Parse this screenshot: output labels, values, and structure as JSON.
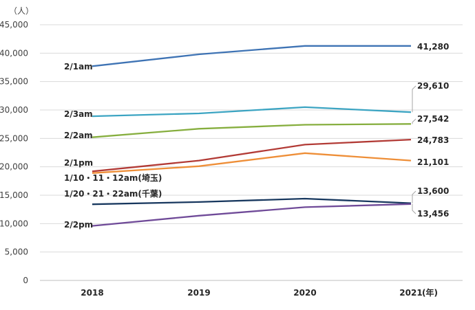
{
  "chart_data": {
    "type": "line",
    "title": "",
    "y_unit": "（人）",
    "x_unit": "(年)",
    "ylim": [
      0,
      45000
    ],
    "yticks": [
      0,
      5000,
      10000,
      15000,
      20000,
      25000,
      30000,
      35000,
      40000,
      45000
    ],
    "ytick_labels": [
      "0",
      "5,000",
      "10,000",
      "15,000",
      "20,000",
      "25,000",
      "30,000",
      "35,000",
      "40,000",
      "45,000"
    ],
    "categories": [
      "2018",
      "2019",
      "2020",
      "2021"
    ],
    "grid": true,
    "series": [
      {
        "name": "2/1am",
        "color": "#3E73B4",
        "values": [
          37700,
          39800,
          41280,
          41280
        ],
        "end_label": "41,280"
      },
      {
        "name": "2/3am",
        "color": "#3BA4C2",
        "values": [
          28900,
          29400,
          30500,
          29610
        ],
        "end_label": "29,610"
      },
      {
        "name": "2/2am",
        "color": "#86AE3E",
        "values": [
          25200,
          26700,
          27400,
          27542
        ],
        "end_label": "27,542"
      },
      {
        "name": "2/1pm",
        "color": "#B23A35",
        "values": [
          19200,
          21100,
          23900,
          24783
        ],
        "end_label": "24,783"
      },
      {
        "name": "1/10・11・12am(埼玉)",
        "color": "#EE8E37",
        "values": [
          18900,
          20100,
          22400,
          21101
        ],
        "end_label": "21,101"
      },
      {
        "name": "1/20・21・22am(千葉)",
        "color": "#17375E",
        "values": [
          13400,
          13800,
          14400,
          13600
        ],
        "end_label": "13,600"
      },
      {
        "name": "2/2pm",
        "color": "#6F4A98",
        "values": [
          9600,
          11400,
          12900,
          13456
        ],
        "end_label": "13,456"
      }
    ]
  }
}
